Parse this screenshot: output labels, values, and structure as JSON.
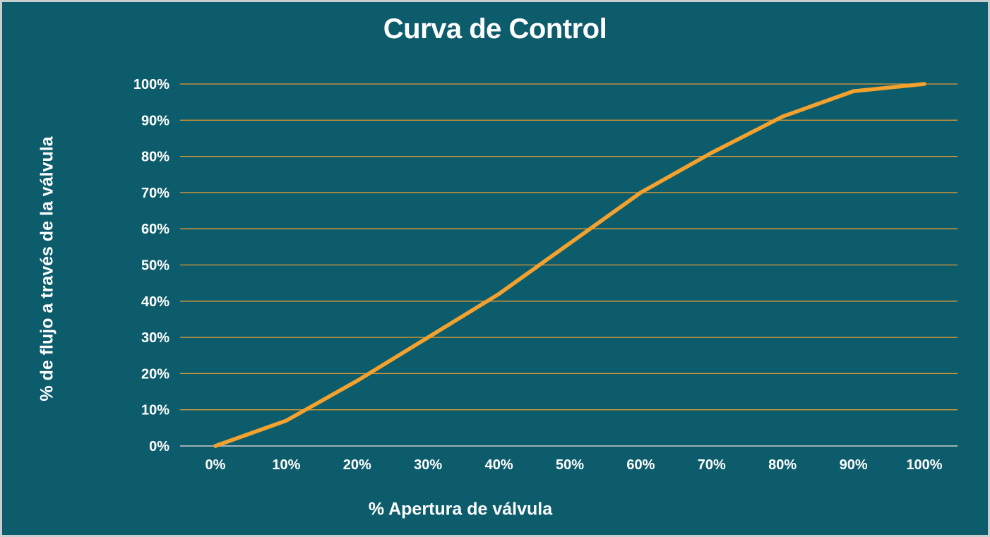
{
  "title": "Curva de Control",
  "chart_data": {
    "type": "line",
    "x": [
      0,
      10,
      20,
      30,
      40,
      50,
      60,
      70,
      80,
      90,
      100
    ],
    "values": [
      0,
      7,
      18,
      30,
      42,
      56,
      70,
      81,
      91,
      98,
      100
    ],
    "x_tick_labels": [
      "0%",
      "10%",
      "20%",
      "30%",
      "40%",
      "50%",
      "60%",
      "70%",
      "80%",
      "90%",
      "100%"
    ],
    "y_tick_labels": [
      "0%",
      "10%",
      "20%",
      "30%",
      "40%",
      "50%",
      "60%",
      "70%",
      "80%",
      "90%",
      "100%"
    ],
    "xlabel": "% Apertura de válvula",
    "ylabel": "% de flujo a través de la válvula",
    "xlim": [
      0,
      100
    ],
    "ylim": [
      0,
      100
    ],
    "grid": "horizontal",
    "legend": "none",
    "colors": {
      "background": "#0d5c6c",
      "line": "#f4a22d",
      "gridline": "#de9a35",
      "axis_line": "#b6bcbe",
      "text": "#ffffff",
      "border": "#c9ced1"
    }
  }
}
